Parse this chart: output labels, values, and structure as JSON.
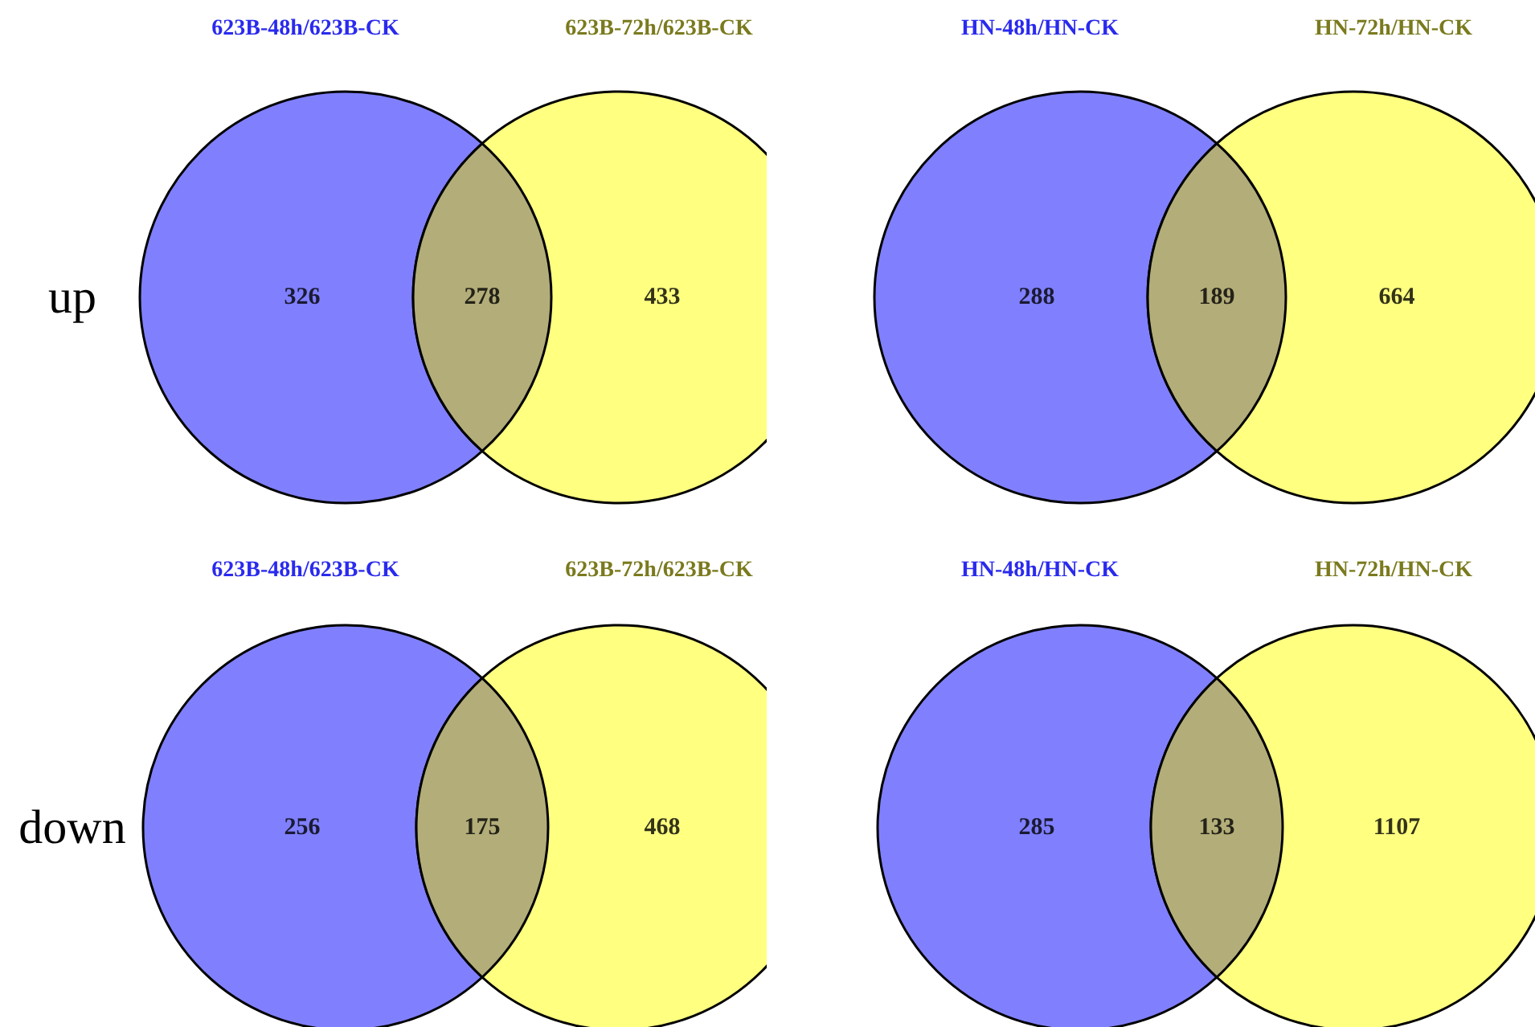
{
  "chart_data": [
    {
      "type": "other",
      "data_labels": true,
      "ylabel": "up",
      "annotations": [
        "623B-48h/623B-CK",
        "623B-72h/623B-CK"
      ],
      "values": [
        326,
        278,
        433
      ],
      "colors": [
        "#8080ff",
        "#b3ad79",
        "#ffff80"
      ]
    },
    {
      "type": "other",
      "data_labels": true,
      "annotations": [
        "HN-48h/HN-CK",
        "HN-72h/HN-CK"
      ],
      "values": [
        288,
        189,
        664
      ],
      "colors": [
        "#8080ff",
        "#b3ad79",
        "#ffff80"
      ]
    },
    {
      "type": "other",
      "data_labels": true,
      "ylabel": "down",
      "annotations": [
        "623B-48h/623B-CK",
        "623B-72h/623B-CK"
      ],
      "values": [
        256,
        175,
        468
      ],
      "colors": [
        "#8080ff",
        "#b3ad79",
        "#ffff80"
      ]
    },
    {
      "type": "other",
      "data_labels": true,
      "annotations": [
        "HN-48h/HN-CK",
        "HN-72h/HN-CK"
      ],
      "values": [
        285,
        133,
        1107
      ],
      "colors": [
        "#8080ff",
        "#b3ad79",
        "#ffff80"
      ]
    }
  ]
}
